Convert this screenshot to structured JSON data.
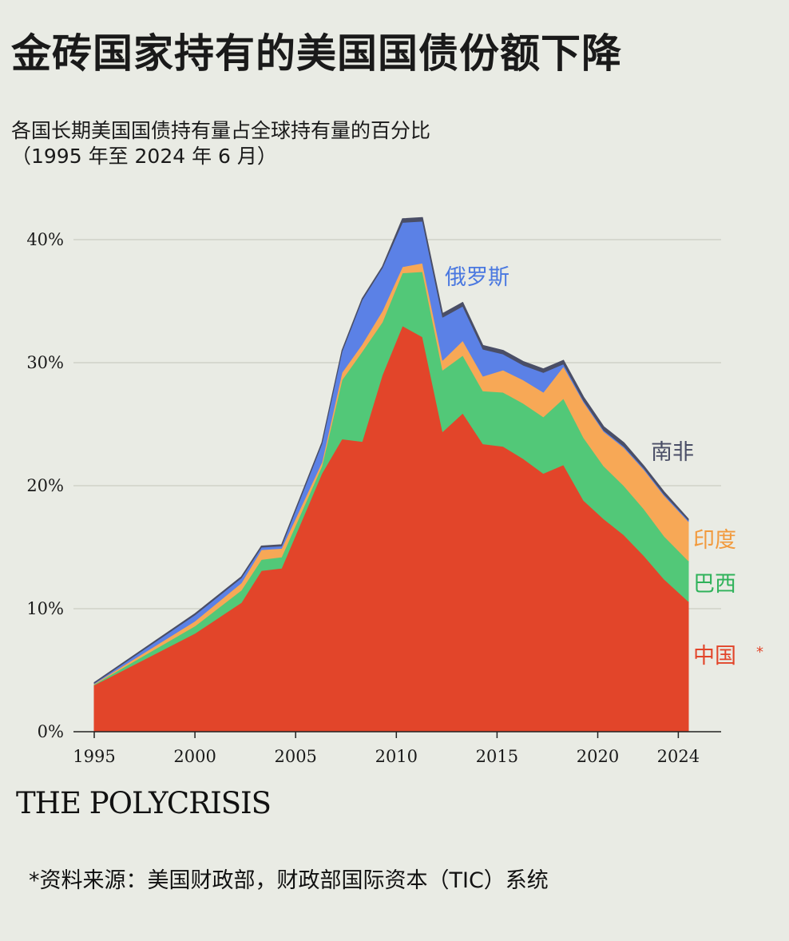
{
  "header": {
    "title": "金砖国家持有的美国国债份额下降",
    "subtitle": "各国长期美国国债持有量占全球持有量的百分比\n（1995 年至 2024 年 6 月）"
  },
  "footer": {
    "brand": "THE POLYCRISIS",
    "source": "*资料来源：美国财政部，财政部国际资本（TIC）系统",
    "footnote_mark": "*"
  },
  "chart_data": {
    "type": "area",
    "stacked": true,
    "x": [
      1995,
      2000,
      2002.3,
      2003.3,
      2004.3,
      2006.3,
      2007.3,
      2008.3,
      2009.3,
      2010.3,
      2011.3,
      2012.3,
      2013.3,
      2014.3,
      2015.3,
      2016.3,
      2017.3,
      2018.3,
      2019.3,
      2020.3,
      2021.3,
      2022.3,
      2023.3,
      2024.5
    ],
    "series": [
      {
        "name": "中国",
        "color": "#e2452a",
        "values": [
          3.8,
          8.0,
          10.5,
          13.1,
          13.3,
          21.0,
          23.8,
          23.6,
          29.0,
          33.0,
          32.1,
          24.4,
          25.9,
          23.4,
          23.2,
          22.2,
          21.0,
          21.7,
          18.8,
          17.3,
          16.0,
          14.3,
          12.4,
          10.6
        ]
      },
      {
        "name": "巴西",
        "color": "#52c878",
        "values": [
          0.05,
          0.6,
          1.0,
          0.9,
          0.9,
          0.6,
          4.8,
          7.3,
          4.3,
          4.3,
          5.3,
          5.0,
          4.7,
          4.3,
          4.4,
          4.5,
          4.6,
          5.4,
          5.1,
          4.3,
          4.0,
          3.8,
          3.5,
          3.3
        ]
      },
      {
        "name": "印度",
        "color": "#f7a856",
        "values": [
          0.05,
          0.4,
          0.6,
          0.8,
          0.7,
          0.3,
          0.6,
          0.6,
          0.9,
          0.5,
          0.7,
          0.8,
          1.2,
          1.2,
          1.8,
          1.9,
          2.0,
          2.6,
          2.9,
          2.8,
          3.1,
          3.2,
          3.3,
          3.2
        ]
      },
      {
        "name": "俄罗斯",
        "color": "#5b81e6",
        "values": [
          0.05,
          0.5,
          0.4,
          0.2,
          0.2,
          1.5,
          1.7,
          3.6,
          3.5,
          3.6,
          3.4,
          3.5,
          2.8,
          2.2,
          1.3,
          1.2,
          1.6,
          0.2,
          0.1,
          0.1,
          0.1,
          0.1,
          0.1,
          0.1
        ]
      },
      {
        "name": "南非",
        "color": "#4a4e66",
        "values": [
          0.05,
          0.1,
          0.1,
          0.1,
          0.1,
          0.1,
          0.1,
          0.1,
          0.1,
          0.3,
          0.3,
          0.3,
          0.3,
          0.3,
          0.3,
          0.3,
          0.3,
          0.3,
          0.3,
          0.3,
          0.3,
          0.2,
          0.2,
          0.1
        ]
      }
    ],
    "x_ticks": [
      "1995",
      "2000",
      "2005",
      "2010",
      "2015",
      "2020",
      "2024"
    ],
    "x_tick_values": [
      1995,
      2000,
      2005,
      2010,
      2015,
      2020,
      2024
    ],
    "y_ticks": [
      "0%",
      "10%",
      "20%",
      "30%",
      "40%"
    ],
    "y_tick_values": [
      0,
      10,
      20,
      30,
      40
    ],
    "xlim": [
      1994.2,
      2025.8
    ],
    "ylim": [
      0,
      45
    ],
    "grid": "horizontal",
    "legend": "direct labels"
  }
}
